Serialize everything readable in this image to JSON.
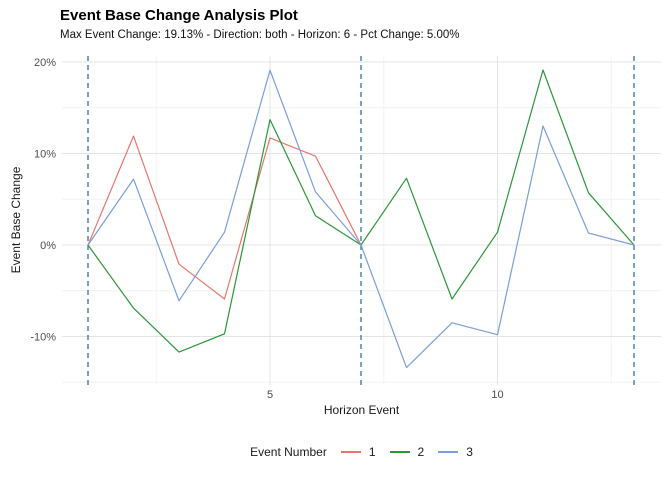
{
  "header": {
    "title": "Event Base Change Analysis Plot",
    "subtitle": "Max Event Change: 19.13% - Direction: both - Horizon: 6 - Pct Change: 5.00%"
  },
  "chart_data": {
    "type": "line",
    "title": "Event Base Change Analysis Plot",
    "subtitle": "Max Event Change: 19.13% - Direction: both - Horizon: 6 - Pct Change: 5.00%",
    "xlabel": "Horizon Event",
    "ylabel": "Event Base Change",
    "x": [
      1,
      2,
      3,
      4,
      5,
      6,
      7,
      8,
      9,
      10,
      11,
      12,
      13
    ],
    "series": [
      {
        "name": "1",
        "color": "#E8766E",
        "values": [
          0,
          11.9,
          -2.1,
          -5.9,
          11.7,
          9.7,
          0,
          null,
          null,
          null,
          null,
          null,
          null
        ]
      },
      {
        "name": "2",
        "color": "#2C9639",
        "values": [
          0,
          -6.9,
          -11.7,
          -9.7,
          13.7,
          3.2,
          0,
          7.3,
          -5.9,
          1.4,
          19.13,
          5.7,
          0
        ]
      },
      {
        "name": "3",
        "color": "#7B9DDB",
        "values": [
          0,
          7.2,
          -6.1,
          1.4,
          19.1,
          5.8,
          0,
          -13.4,
          -8.5,
          -9.8,
          13.0,
          1.3,
          0
        ]
      }
    ],
    "event_vlines": {
      "x": [
        1,
        7,
        13
      ],
      "color": "#3E7CA8",
      "style": "dashed"
    },
    "y_ticks": [
      {
        "v": -10,
        "label": "-10%"
      },
      {
        "v": 0,
        "label": "0%"
      },
      {
        "v": 10,
        "label": "10%"
      },
      {
        "v": 20,
        "label": "20%"
      }
    ],
    "y_minor": [
      -15,
      -5,
      5,
      15
    ],
    "x_ticks": [
      {
        "v": 5,
        "label": "5"
      },
      {
        "v": 10,
        "label": "10"
      }
    ],
    "x_minor": [
      2.5,
      7.5,
      12.5
    ],
    "xlim": [
      0.43,
      13.6
    ],
    "ylim": [
      -15.3,
      20.7
    ],
    "grid": true,
    "legend": {
      "title": "Event Number",
      "position": "bottom"
    }
  },
  "colors": {
    "grid_major": "#E4E4E4",
    "grid_minor": "#F2F2F2",
    "axis_text": "#4D4D4D",
    "text": "#1A1A1A",
    "background": "#FFFFFF"
  }
}
